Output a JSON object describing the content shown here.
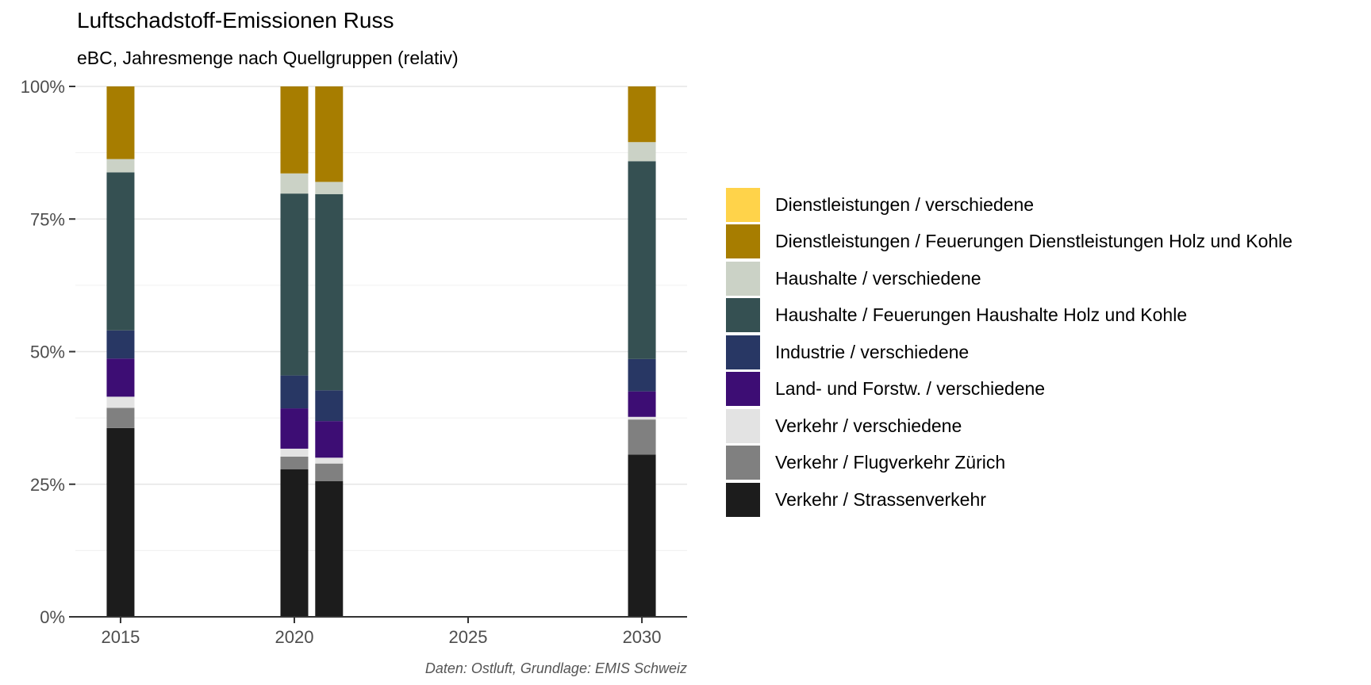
{
  "chart_data": {
    "type": "bar",
    "stacked": true,
    "title": "Luftschadstoff-Emissionen Russ",
    "subtitle": "eBC, Jahresmenge nach Quellgruppen (relativ)",
    "caption": "Daten: Ostluft, Grundlage: EMIS Schweiz",
    "xlabel": "",
    "ylabel": "",
    "xlim": [
      2013.7,
      2031.3
    ],
    "x_ticks": [
      2015,
      2020,
      2025,
      2030
    ],
    "x_tick_labels": [
      "2015",
      "2020",
      "2025",
      "2030"
    ],
    "ylim": [
      0,
      1
    ],
    "y_ticks": [
      0,
      0.25,
      0.5,
      0.75,
      1
    ],
    "y_tick_labels": [
      "0%",
      "25%",
      "50%",
      "75%",
      "100%"
    ],
    "grid": true,
    "legend_position": "right",
    "x": [
      2015,
      2020,
      2021,
      2030
    ],
    "series": [
      {
        "name": "Verkehr / Strassenverkehr",
        "color": "#1c1c1c",
        "values": [
          0.356,
          0.278,
          0.256,
          0.306
        ]
      },
      {
        "name": "Verkehr / Flugverkehr Zürich",
        "color": "#808080",
        "values": [
          0.038,
          0.024,
          0.033,
          0.066
        ]
      },
      {
        "name": "Verkehr / verschiedene",
        "color": "#e3e3e3",
        "values": [
          0.021,
          0.015,
          0.011,
          0.005
        ]
      },
      {
        "name": "Land- und Forstw. / verschiedene",
        "color": "#3d0d74",
        "values": [
          0.072,
          0.076,
          0.069,
          0.048
        ]
      },
      {
        "name": "Industrie / verschiedene",
        "color": "#283764",
        "values": [
          0.053,
          0.062,
          0.058,
          0.061
        ]
      },
      {
        "name": "Haushalte / Feuerungen Haushalte Holz und Kohle",
        "color": "#355052",
        "values": [
          0.298,
          0.343,
          0.37,
          0.373
        ]
      },
      {
        "name": "Haushalte / verschiedene",
        "color": "#cbd2c6",
        "values": [
          0.025,
          0.038,
          0.023,
          0.036
        ]
      },
      {
        "name": "Dienstleistungen / Feuerungen Dienstleistungen Holz und Kohle",
        "color": "#a77d00",
        "values": [
          0.137,
          0.164,
          0.18,
          0.105
        ]
      },
      {
        "name": "Dienstleistungen / verschiedene",
        "color": "#ffd34a",
        "values": [
          0,
          0,
          0,
          0
        ]
      }
    ],
    "legend_order": [
      8,
      7,
      6,
      5,
      4,
      3,
      2,
      1,
      0
    ]
  }
}
